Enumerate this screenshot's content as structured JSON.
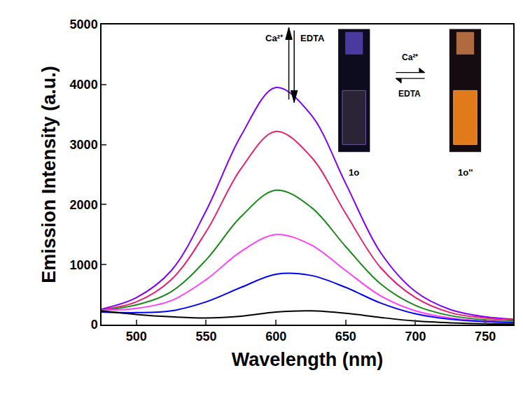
{
  "chart_data": {
    "type": "line",
    "x_label": "Wavelength (nm)",
    "y_label": "Emission Intensity (a.u.)",
    "x": [
      475,
      500,
      525,
      550,
      575,
      600,
      625,
      650,
      675,
      700,
      725,
      750,
      770
    ],
    "series": [
      {
        "color": "#8000ff",
        "values": [
          260,
          450,
          900,
          1900,
          3150,
          3950,
          3500,
          2350,
          1200,
          550,
          250,
          130,
          90
        ]
      },
      {
        "color": "#e8206e",
        "values": [
          250,
          380,
          750,
          1550,
          2600,
          3220,
          2800,
          1850,
          950,
          450,
          200,
          110,
          80
        ]
      },
      {
        "color": "#1a8a1a",
        "values": [
          240,
          330,
          550,
          1080,
          1800,
          2240,
          1960,
          1300,
          680,
          320,
          150,
          80,
          60
        ]
      },
      {
        "color": "#ff40ff",
        "values": [
          240,
          270,
          400,
          750,
          1220,
          1500,
          1330,
          900,
          480,
          230,
          110,
          60,
          45
        ]
      },
      {
        "color": "#0000ff",
        "values": [
          210,
          200,
          230,
          380,
          620,
          840,
          820,
          620,
          360,
          180,
          90,
          50,
          35
        ]
      },
      {
        "color": "#000000",
        "values": [
          230,
          170,
          130,
          110,
          140,
          210,
          230,
          190,
          120,
          60,
          30,
          15,
          10
        ]
      }
    ],
    "xlim": [
      475,
      770
    ],
    "xticks": [
      500,
      550,
      600,
      650,
      700,
      750
    ],
    "ylim": [
      0,
      5000
    ],
    "yticks": [
      0,
      1000,
      2000,
      3000,
      4000,
      5000
    ],
    "grid": false,
    "annotations": [
      "Ca²⁺",
      "EDTA",
      "1o",
      "1o''",
      "Ca²⁺",
      "EDTA"
    ]
  }
}
